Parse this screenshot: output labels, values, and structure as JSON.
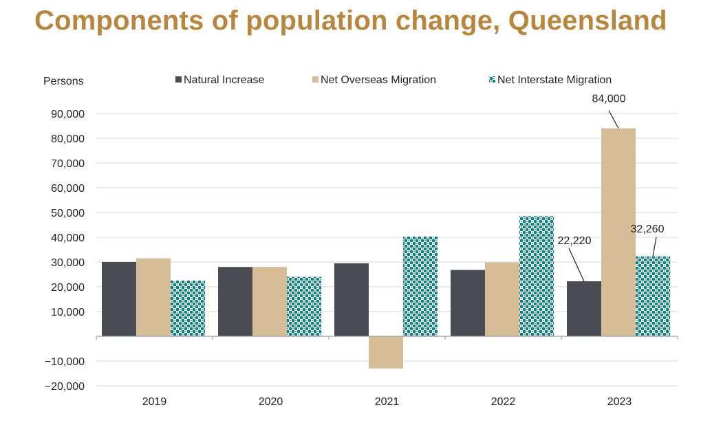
{
  "title": "Components of population change, Queensland",
  "colors": {
    "title": "#b8863f",
    "natural": "#494c52",
    "overseas": "#d6bc97",
    "interstate": "#0f7f80",
    "interstate_bg": "#ffffff",
    "grid": "#d4d4d4"
  },
  "chart_data": {
    "type": "bar",
    "ylabel": "Persons",
    "categories": [
      "2019",
      "2020",
      "2021",
      "2022",
      "2023"
    ],
    "ylim": [
      -20000,
      90000
    ],
    "yticks": [
      -20000,
      -10000,
      10000,
      20000,
      30000,
      40000,
      50000,
      60000,
      70000,
      80000,
      90000
    ],
    "ytick_labels": [
      "−20,000",
      "−10,000",
      "10,000",
      "20,000",
      "30,000",
      "40,000",
      "50,000",
      "60,000",
      "70,000",
      "80,000",
      "90,000"
    ],
    "grid": true,
    "legend_position": "top",
    "series": [
      {
        "name": "Natural Increase",
        "values": [
          30000,
          28000,
          29500,
          26800,
          22220
        ]
      },
      {
        "name": "Net Overseas Migration",
        "values": [
          31500,
          28000,
          -13000,
          29800,
          84000
        ]
      },
      {
        "name": "Net Interstate Migration",
        "values": [
          22500,
          24000,
          40300,
          48500,
          32260
        ]
      }
    ],
    "annotations": [
      {
        "text": "22,220",
        "series": 0,
        "category": "2023",
        "value": 22220
      },
      {
        "text": "84,000",
        "series": 1,
        "category": "2023",
        "value": 84000
      },
      {
        "text": "32,260",
        "series": 2,
        "category": "2023",
        "value": 32260
      }
    ]
  }
}
